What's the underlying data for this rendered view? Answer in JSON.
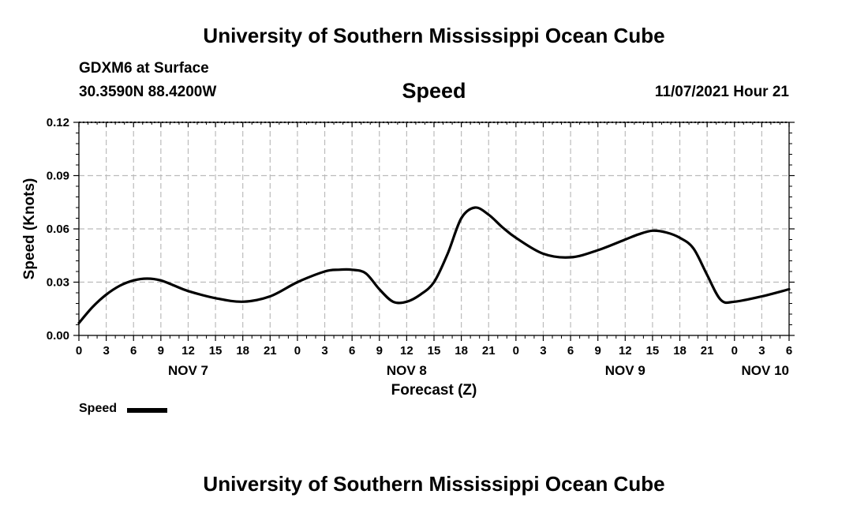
{
  "header": {
    "title": "University of Southern Mississippi Ocean Cube",
    "station": "GDXM6 at Surface",
    "coordinates": "30.3590N  88.4200W",
    "chart_title": "Speed",
    "timestamp": "11/07/2021 Hour 21"
  },
  "footer": {
    "title": "University of Southern Mississippi Ocean Cube"
  },
  "legend": {
    "label": "Speed"
  },
  "chart_data": {
    "type": "line",
    "title": "Speed",
    "xlabel": "Forecast (Z)",
    "ylabel": "Speed (Knots)",
    "ylim": [
      0,
      0.12
    ],
    "xlim": [
      0,
      78
    ],
    "x_unit": "hours since NOV 7 00Z",
    "y_ticks": [
      "0.00",
      "0.03",
      "0.06",
      "0.09",
      "0.12"
    ],
    "y_tick_values": [
      0,
      0.03,
      0.06,
      0.09,
      0.12
    ],
    "x_tick_labels": [
      "0",
      "3",
      "6",
      "9",
      "12",
      "15",
      "18",
      "21",
      "0",
      "3",
      "6",
      "9",
      "12",
      "15",
      "18",
      "21",
      "0",
      "3",
      "6",
      "9",
      "12",
      "15",
      "18",
      "21",
      "0",
      "3",
      "6"
    ],
    "day_labels": [
      {
        "label": "NOV 7",
        "hour": 12
      },
      {
        "label": "NOV 8",
        "hour": 36
      },
      {
        "label": "NOV 9",
        "hour": 60
      },
      {
        "label": "NOV 10",
        "hour": 78
      }
    ],
    "grid": true,
    "series": [
      {
        "name": "Speed",
        "color": "#000000",
        "x": [
          0,
          1.5,
          3,
          4.5,
          6,
          7.5,
          9,
          10.5,
          12,
          15,
          18,
          21,
          24,
          27,
          28.5,
          30,
          31.5,
          33,
          34.5,
          36,
          37.5,
          39,
          40.5,
          42,
          43.5,
          45,
          46.5,
          48,
          51,
          54,
          57,
          60,
          61.5,
          63,
          64.5,
          66,
          67.5,
          69,
          70.5,
          72,
          75,
          78
        ],
        "values": [
          0.007,
          0.016,
          0.023,
          0.028,
          0.031,
          0.032,
          0.031,
          0.028,
          0.025,
          0.021,
          0.019,
          0.022,
          0.03,
          0.036,
          0.037,
          0.037,
          0.035,
          0.026,
          0.019,
          0.019,
          0.023,
          0.03,
          0.046,
          0.066,
          0.072,
          0.068,
          0.061,
          0.055,
          0.046,
          0.044,
          0.048,
          0.054,
          0.057,
          0.059,
          0.058,
          0.055,
          0.049,
          0.034,
          0.02,
          0.019,
          0.022,
          0.026
        ]
      }
    ]
  }
}
